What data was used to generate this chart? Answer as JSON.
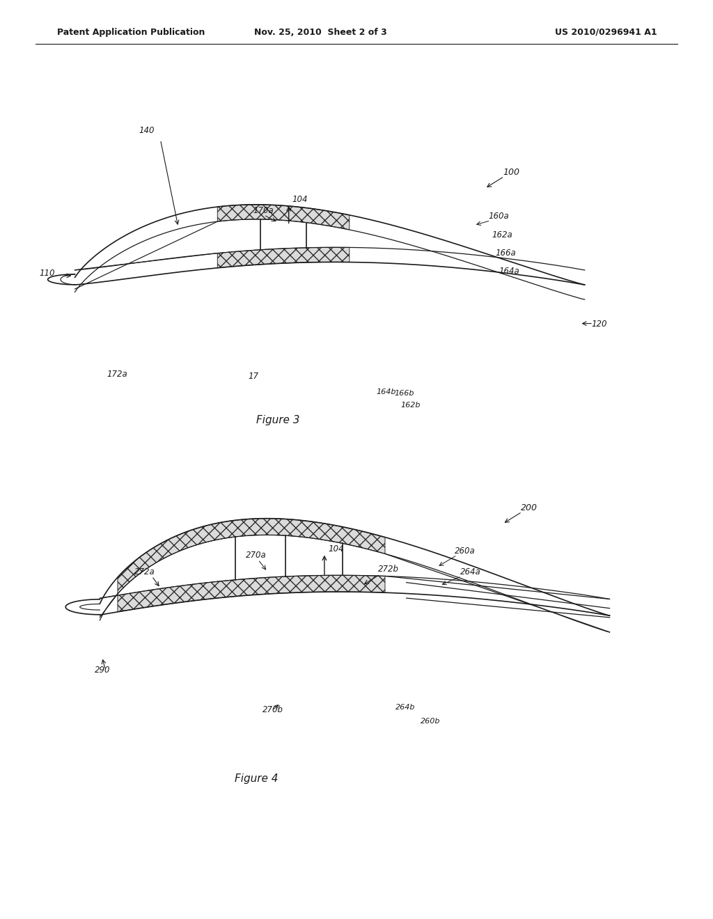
{
  "bg_color": "#ffffff",
  "header": {
    "left": "Patent Application Publication",
    "center": "Nov. 25, 2010  Sheet 2 of 3",
    "right": "US 2010/0296941 A1"
  },
  "fig3_caption": "Figure 3",
  "fig4_caption": "Figure 4"
}
